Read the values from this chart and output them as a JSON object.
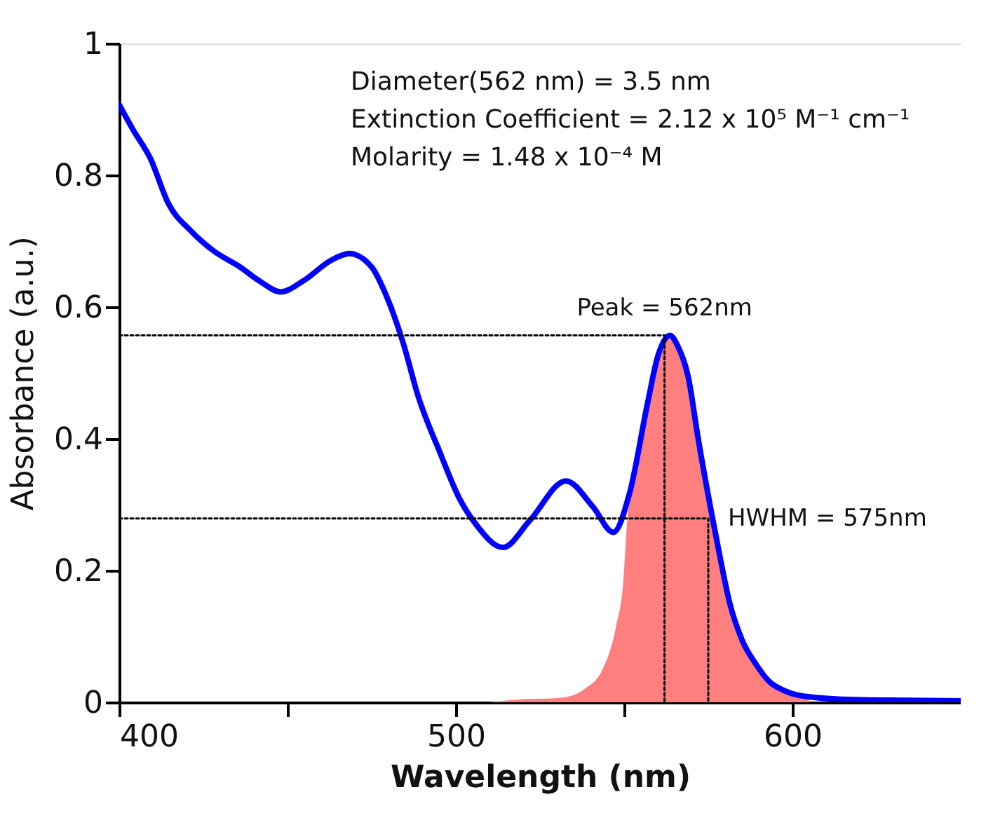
{
  "chart_data": {
    "type": "line",
    "xlabel": "Wavelength (nm)",
    "ylabel": "Absorbance (a.u.)",
    "xlim": [
      400,
      650
    ],
    "xticks": [
      400,
      {
        "value": 450,
        "label": null
      },
      500,
      {
        "value": 550,
        "label": null
      },
      600
    ],
    "ylim": [
      0,
      1
    ],
    "yticks": [
      0,
      0.2,
      0.4,
      0.6,
      0.8,
      1
    ],
    "annotations": [
      "Diameter(562 nm) = 3.5 nm",
      "Extinction Coefficient = 2.12 x 10⁵ M⁻¹ cm⁻¹",
      "Molarity = 1.48 x 10⁻⁴ M",
      {
        "text": "Peak = 562nm",
        "x": 562,
        "y": 0.557
      },
      {
        "text": "HWHM = 575nm",
        "x": 575,
        "y": 0.279
      }
    ],
    "series": [
      {
        "type": "area",
        "color": "#ff7f7f",
        "x": [
          510,
          518,
          531.5,
          538.2,
          543.6,
          547.6,
          549.7,
          551,
          553,
          557,
          560,
          563.6,
          566,
          569,
          572,
          575.9,
          578.5,
          581.3,
          585,
          589.4,
          593,
          597.4,
          600,
          605
        ],
        "values": [
          0,
          0.004,
          0.007,
          0.02,
          0.05,
          0.115,
          0.18,
          0.28,
          0.33,
          0.455,
          0.525,
          0.557,
          0.54,
          0.495,
          0.4,
          0.289,
          0.22,
          0.152,
          0.095,
          0.056,
          0.032,
          0.018,
          0.012,
          0.006
        ]
      },
      {
        "color": "#0000ff",
        "x": [
          400,
          404,
          409.3,
          414.6,
          421.4,
          428.1,
          436.1,
          441.5,
          448,
          454.8,
          463,
          468.4,
          475.1,
          479.2,
          484.5,
          488.6,
          495.3,
          501,
          506,
          514,
          522,
          532.7,
          540.7,
          546.8,
          551.6,
          557,
          560,
          563.6,
          566,
          569,
          572,
          575.9,
          578.5,
          581.3,
          585,
          589.4,
          593,
          597.4,
          605.5,
          618.5,
          634,
          650
        ],
        "values": [
          0.907,
          0.87,
          0.825,
          0.757,
          0.715,
          0.685,
          0.66,
          0.64,
          0.623,
          0.64,
          0.671,
          0.681,
          0.66,
          0.619,
          0.543,
          0.468,
          0.379,
          0.31,
          0.27,
          0.235,
          0.276,
          0.336,
          0.297,
          0.258,
          0.317,
          0.455,
          0.525,
          0.557,
          0.54,
          0.495,
          0.4,
          0.289,
          0.22,
          0.152,
          0.095,
          0.056,
          0.032,
          0.018,
          0.008,
          0.004,
          0.003,
          0.002
        ]
      },
      {
        "type": "line",
        "color": "#000000",
        "line_style": "dotted",
        "x": [
          400,
          562,
          562
        ],
        "values": [
          0.557,
          0.557,
          0
        ]
      },
      {
        "type": "line",
        "color": "#000000",
        "line_style": "dotted",
        "x": [
          400,
          575,
          575
        ],
        "values": [
          0.279,
          0.279,
          0
        ]
      }
    ]
  }
}
